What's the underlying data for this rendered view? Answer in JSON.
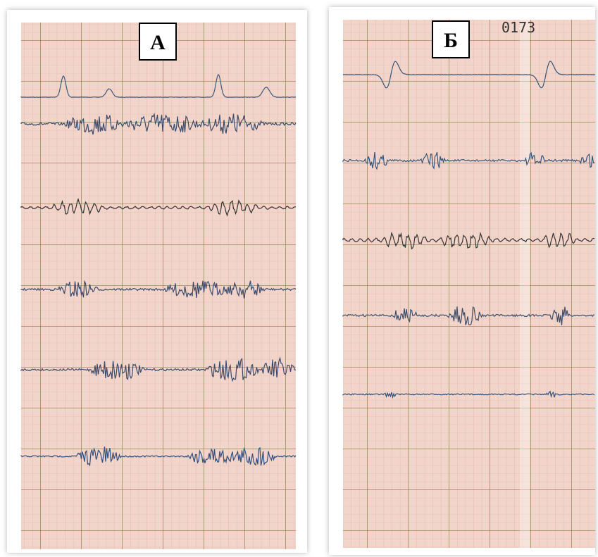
{
  "panels": [
    {
      "label": "А"
    },
    {
      "label": "Б",
      "stamp": "0173"
    }
  ]
}
